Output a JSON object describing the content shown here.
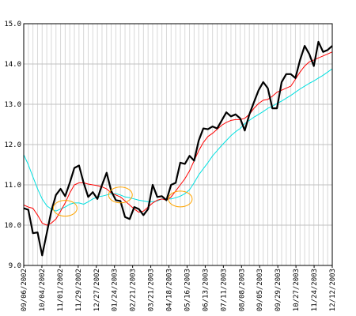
{
  "chart_data": {
    "type": "line",
    "title": "",
    "xlabel": "",
    "ylabel": "",
    "ylim": [
      9.0,
      15.0
    ],
    "yticks": [
      "9.0",
      "10.0",
      "11.0",
      "12.0",
      "13.0",
      "14.0",
      "15.0"
    ],
    "grid": true,
    "x_tick_labels": [
      "09/06/2002",
      "10/04/2002",
      "11/01/2002",
      "11/29/2002",
      "12/27/2002",
      "01/24/2003",
      "02/21/2003",
      "03/21/2003",
      "04/18/2003",
      "05/16/2003",
      "06/13/2003",
      "07/11/2003",
      "08/08/2003",
      "09/05/2003",
      "09/29/2003",
      "10/27/2003",
      "11/24/2003",
      "12/12/2003"
    ],
    "series": [
      {
        "color": "#000000",
        "values": [
          10.42,
          10.38,
          9.8,
          9.82,
          9.25,
          9.8,
          10.35,
          10.75,
          10.9,
          10.72,
          11.05,
          11.42,
          11.48,
          11.05,
          10.7,
          10.82,
          10.65,
          11.0,
          11.3,
          10.85,
          10.62,
          10.6,
          10.2,
          10.15,
          10.45,
          10.4,
          10.25,
          10.4,
          11.0,
          10.7,
          10.72,
          10.62,
          11.0,
          11.05,
          11.55,
          11.52,
          11.72,
          11.6,
          12.1,
          12.4,
          12.38,
          12.45,
          12.4,
          12.6,
          12.8,
          12.7,
          12.75,
          12.65,
          12.35,
          12.75,
          13.05,
          13.35,
          13.55,
          13.4,
          12.9,
          12.9,
          13.55,
          13.75,
          13.75,
          13.65,
          14.1,
          14.45,
          14.25,
          13.95,
          14.55,
          14.3,
          14.35,
          14.45
        ]
      },
      {
        "color": "#ff0000",
        "values": [
          10.5,
          10.45,
          10.42,
          10.25,
          10.05,
          10.0,
          10.05,
          10.15,
          10.35,
          10.55,
          10.8,
          11.0,
          11.05,
          11.05,
          11.02,
          11.0,
          10.98,
          10.95,
          10.9,
          10.8,
          10.75,
          10.7,
          10.6,
          10.5,
          10.4,
          10.32,
          10.35,
          10.45,
          10.55,
          10.62,
          10.65,
          10.62,
          10.7,
          10.85,
          11.0,
          11.15,
          11.35,
          11.6,
          11.85,
          12.05,
          12.2,
          12.28,
          12.38,
          12.48,
          12.55,
          12.6,
          12.62,
          12.62,
          12.65,
          12.75,
          12.9,
          13.02,
          13.1,
          13.12,
          13.2,
          13.3,
          13.35,
          13.4,
          13.45,
          13.62,
          13.8,
          13.95,
          14.05,
          14.1,
          14.15,
          14.2,
          14.25,
          14.3
        ]
      },
      {
        "color": "#00e0e0",
        "values": [
          11.75,
          11.5,
          11.2,
          10.9,
          10.65,
          10.48,
          10.4,
          10.35,
          10.4,
          10.45,
          10.52,
          10.55,
          10.55,
          10.52,
          10.58,
          10.65,
          10.7,
          10.72,
          10.75,
          10.78,
          10.78,
          10.75,
          10.7,
          10.68,
          10.65,
          10.62,
          10.6,
          10.58,
          10.58,
          10.6,
          10.65,
          10.65,
          10.65,
          10.68,
          10.72,
          10.78,
          10.88,
          11.05,
          11.25,
          11.4,
          11.55,
          11.72,
          11.85,
          11.98,
          12.1,
          12.22,
          12.32,
          12.4,
          12.52,
          12.6,
          12.68,
          12.75,
          12.82,
          12.9,
          12.95,
          13.02,
          13.08,
          13.15,
          13.22,
          13.3,
          13.38,
          13.45,
          13.52,
          13.58,
          13.65,
          13.72,
          13.8,
          13.88
        ]
      }
    ],
    "annotations": [
      {
        "type": "ellipse",
        "color": "#ffa500",
        "x_index": 9,
        "y": 10.42
      },
      {
        "type": "ellipse",
        "color": "#ffa500",
        "x_index": 21,
        "y": 10.75
      },
      {
        "type": "ellipse",
        "color": "#ffa500",
        "x_index": 34,
        "y": 10.65
      }
    ]
  }
}
